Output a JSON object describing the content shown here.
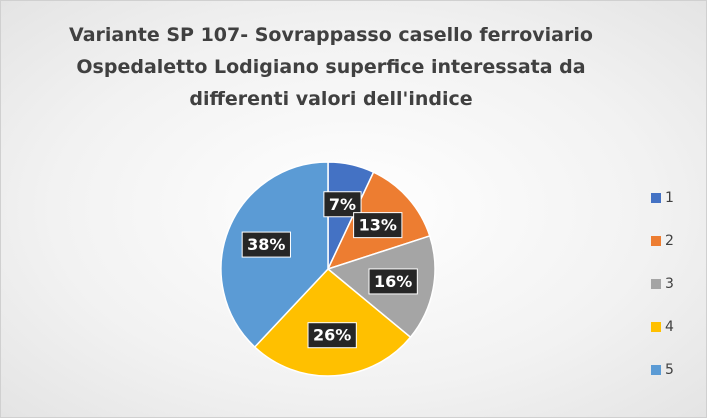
{
  "chart_data": {
    "type": "pie",
    "title": "Variante SP 107- Sovrappasso casello ferroviario Ospedaletto Lodigiano superfice interessata da differenti valori dell'indice",
    "categories": [
      "1",
      "2",
      "3",
      "4",
      "5"
    ],
    "values": [
      7,
      13,
      16,
      26,
      38
    ],
    "value_labels": [
      "7%",
      "13%",
      "16%",
      "26%",
      "38%"
    ],
    "colors": [
      "#4472c4",
      "#ed7d31",
      "#a5a5a5",
      "#ffc000",
      "#5b9bd5"
    ],
    "legend": "right"
  }
}
